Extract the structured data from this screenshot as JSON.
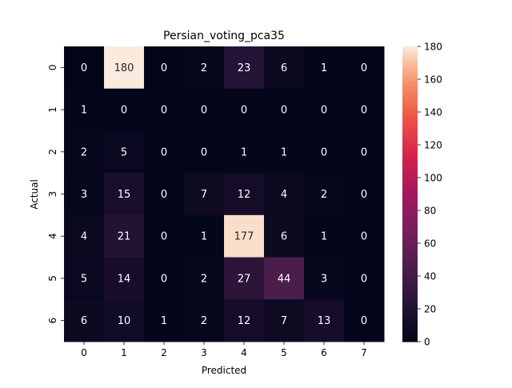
{
  "chart_data": {
    "type": "heatmap",
    "title": "Persian_voting_pca35",
    "xlabel": "Predicted",
    "ylabel": "Actual",
    "x_categories": [
      "0",
      "1",
      "2",
      "3",
      "4",
      "5",
      "6",
      "7"
    ],
    "y_categories": [
      "0",
      "1",
      "2",
      "3",
      "4",
      "5",
      "6"
    ],
    "values": [
      [
        0,
        180,
        0,
        2,
        23,
        6,
        1,
        0
      ],
      [
        1,
        0,
        0,
        0,
        0,
        0,
        0,
        0
      ],
      [
        2,
        5,
        0,
        0,
        1,
        1,
        0,
        0
      ],
      [
        3,
        15,
        0,
        7,
        12,
        4,
        2,
        0
      ],
      [
        4,
        21,
        0,
        1,
        177,
        6,
        1,
        0
      ],
      [
        5,
        14,
        0,
        2,
        27,
        44,
        3,
        0
      ],
      [
        6,
        10,
        1,
        2,
        12,
        7,
        13,
        0
      ]
    ],
    "colorbar": {
      "min": 0,
      "max": 180,
      "ticks": [
        "0",
        "20",
        "40",
        "60",
        "80",
        "100",
        "120",
        "140",
        "160",
        "180"
      ],
      "colormap": "rocket"
    },
    "grid": false
  }
}
